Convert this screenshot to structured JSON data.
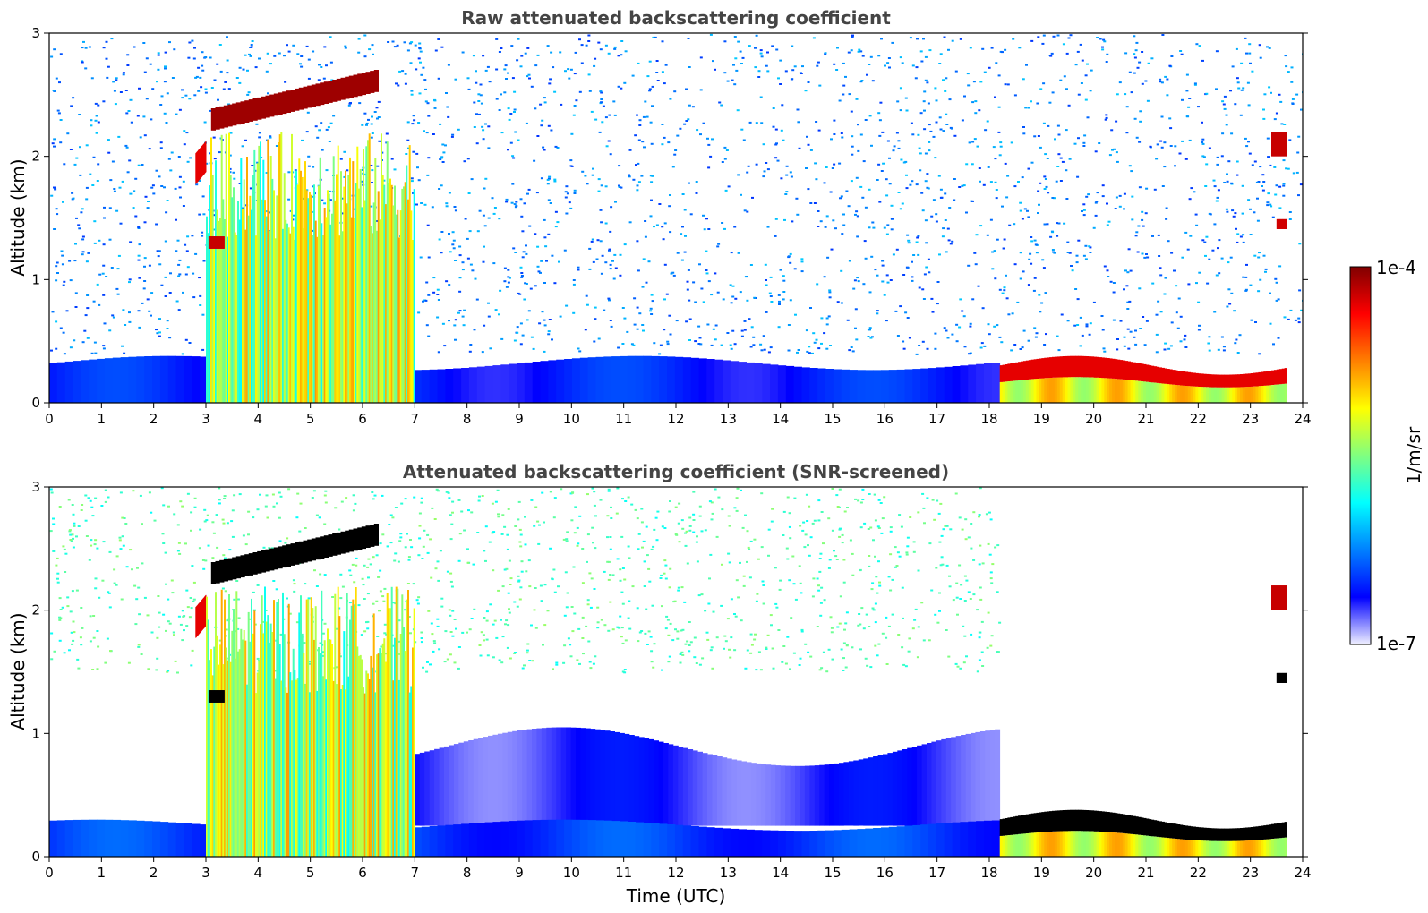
{
  "chart_data": [
    {
      "type": "heatmap",
      "title": "Raw attenuated backscattering coefficient",
      "xlabel": "",
      "ylabel": "Altitude (km)",
      "xlim": [
        0,
        24
      ],
      "ylim": [
        0,
        3
      ],
      "xticks": [
        "0",
        "1",
        "2",
        "3",
        "4",
        "5",
        "6",
        "7",
        "8",
        "9",
        "10",
        "11",
        "12",
        "13",
        "14",
        "15",
        "16",
        "17",
        "18",
        "19",
        "20",
        "21",
        "22",
        "23",
        "24"
      ],
      "yticks": [
        "0",
        "1",
        "2",
        "3"
      ],
      "features": [
        {
          "kind": "noise-field",
          "x_range": [
            0.0,
            24.0
          ],
          "alt_range": [
            0.4,
            3.0
          ],
          "level": 0.25
        },
        {
          "kind": "surface-layer",
          "x_range": [
            0.0,
            18.2
          ],
          "alt_range": [
            0.0,
            0.38
          ],
          "level": 0.15
        },
        {
          "kind": "cloud-layer",
          "x_range": [
            3.1,
            6.3
          ],
          "alt_start": 2.3,
          "alt_end": 2.62,
          "thickness": 0.18,
          "level": 0.97
        },
        {
          "kind": "cloud-layer",
          "x_range": [
            2.8,
            3.0
          ],
          "alt_start": 1.9,
          "alt_end": 2.0,
          "thickness": 0.25,
          "level": 0.9
        },
        {
          "kind": "virga",
          "x_range": [
            3.0,
            7.0
          ],
          "alt_range": [
            0.0,
            2.2
          ],
          "level": 0.55
        },
        {
          "kind": "cloud-layer",
          "x_range": [
            3.05,
            3.35
          ],
          "alt_start": 1.3,
          "alt_end": 1.3,
          "thickness": 0.1,
          "level": 0.93
        },
        {
          "kind": "low-cloud",
          "x_range": [
            18.2,
            23.7
          ],
          "alt_range": [
            0.0,
            0.38
          ],
          "level": 0.9
        },
        {
          "kind": "cloud-layer",
          "x_range": [
            23.4,
            23.7
          ],
          "alt_start": 2.1,
          "alt_end": 2.1,
          "thickness": 0.2,
          "level": 0.93
        },
        {
          "kind": "cloud-layer",
          "x_range": [
            23.5,
            23.7
          ],
          "alt_start": 1.45,
          "alt_end": 1.45,
          "thickness": 0.08,
          "level": 0.92
        }
      ]
    },
    {
      "type": "heatmap",
      "title": "Attenuated backscattering coefficient (SNR-screened)",
      "xlabel": "Time (UTC)",
      "ylabel": "Altitude (km)",
      "xlim": [
        0,
        24
      ],
      "ylim": [
        0,
        3
      ],
      "xticks": [
        "0",
        "1",
        "2",
        "3",
        "4",
        "5",
        "6",
        "7",
        "8",
        "9",
        "10",
        "11",
        "12",
        "13",
        "14",
        "15",
        "16",
        "17",
        "18",
        "19",
        "20",
        "21",
        "22",
        "23",
        "24"
      ],
      "yticks": [
        "0",
        "1",
        "2",
        "3"
      ],
      "features": [
        {
          "kind": "sparse-noise",
          "x_range": [
            0.0,
            18.2
          ],
          "alt_range": [
            1.5,
            3.0
          ],
          "level": 0.45
        },
        {
          "kind": "aerosol-layer",
          "x_range": [
            7.0,
            18.2
          ],
          "alt_range": [
            0.25,
            1.05
          ],
          "level": 0.1
        },
        {
          "kind": "surface-layer",
          "x_range": [
            0.0,
            18.2
          ],
          "alt_range": [
            0.0,
            0.3
          ],
          "level": 0.18
        },
        {
          "kind": "cloud-layer",
          "x_range": [
            3.1,
            6.3
          ],
          "alt_start": 2.3,
          "alt_end": 2.62,
          "thickness": 0.18,
          "level": 1.1
        },
        {
          "kind": "cloud-layer",
          "x_range": [
            2.8,
            3.0
          ],
          "alt_start": 1.9,
          "alt_end": 2.0,
          "thickness": 0.25,
          "level": 0.9
        },
        {
          "kind": "virga",
          "x_range": [
            3.0,
            7.0
          ],
          "alt_range": [
            0.0,
            2.2
          ],
          "level": 0.55
        },
        {
          "kind": "cloud-layer",
          "x_range": [
            3.05,
            3.35
          ],
          "alt_start": 1.3,
          "alt_end": 1.3,
          "thickness": 0.1,
          "level": 1.1
        },
        {
          "kind": "low-cloud",
          "x_range": [
            18.2,
            23.7
          ],
          "alt_range": [
            0.0,
            0.38
          ],
          "level": 1.1
        },
        {
          "kind": "cloud-layer",
          "x_range": [
            23.4,
            23.7
          ],
          "alt_start": 2.1,
          "alt_end": 2.1,
          "thickness": 0.2,
          "level": 0.93
        },
        {
          "kind": "cloud-layer",
          "x_range": [
            23.5,
            23.7
          ],
          "alt_start": 1.45,
          "alt_end": 1.45,
          "thickness": 0.08,
          "level": 1.1
        }
      ]
    }
  ],
  "colorbar": {
    "label": "1/m/sr",
    "min_label": "1e-7",
    "max_label": "1e-4",
    "colormap": "jet",
    "colors": [
      "#f0f0ff",
      "#0000ff",
      "#0080ff",
      "#00ffff",
      "#80ff80",
      "#ffff00",
      "#ff8000",
      "#ff0000",
      "#800000"
    ]
  }
}
